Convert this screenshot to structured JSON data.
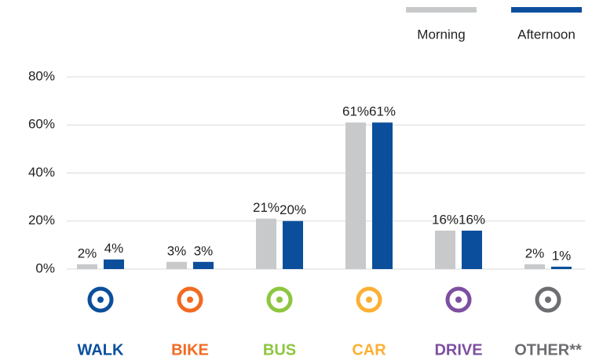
{
  "chart_data": {
    "type": "bar",
    "categories": [
      "WALK",
      "BIKE",
      "BUS",
      "CAR",
      "DRIVE",
      "OTHER**"
    ],
    "category_colors": [
      "#0b4f9c",
      "#f26a21",
      "#8dc63f",
      "#fbb034",
      "#7d4fa0",
      "#6d6e71"
    ],
    "series": [
      {
        "name": "Morning",
        "color": "#c8c9ca",
        "values": [
          2,
          3,
          21,
          61,
          16,
          2
        ],
        "value_labels": [
          "2%",
          "3%",
          "21%",
          "61%",
          "16%",
          "2%"
        ]
      },
      {
        "name": "Afternoon",
        "color": "#0b4f9c",
        "values": [
          4,
          3,
          20,
          61,
          16,
          1
        ],
        "value_labels": [
          "4%",
          "3%",
          "20%",
          "61%",
          "16%",
          "1%"
        ]
      }
    ],
    "ylim": [
      0,
      80
    ],
    "yticks": [
      {
        "value": 0,
        "label": "0%"
      },
      {
        "value": 20,
        "label": "20%"
      },
      {
        "value": 40,
        "label": "40%"
      },
      {
        "value": 60,
        "label": "60%"
      },
      {
        "value": 80,
        "label": "80%"
      }
    ],
    "grid": true,
    "legend": "top-right"
  }
}
